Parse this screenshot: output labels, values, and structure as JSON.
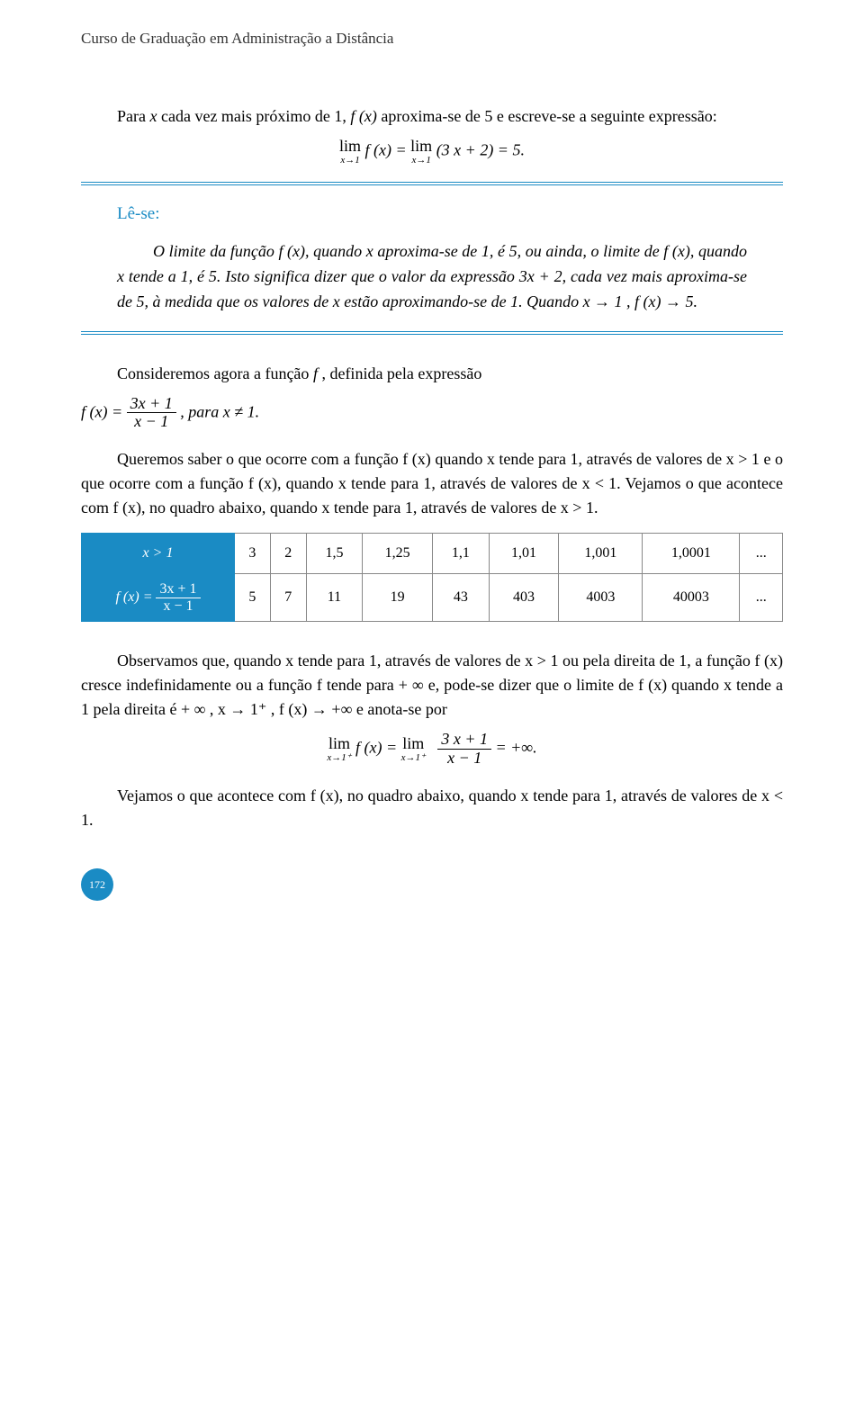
{
  "header": "Curso de Graduação em Administração a Distância",
  "p1_a": "Para ",
  "p1_b": " cada vez mais próximo de 1, ",
  "p1_c": " aproxima-se de 5 e escreve-se a seguinte expressão:",
  "eq1_lim1_top": "lim",
  "eq1_lim1_bot": "x→1",
  "eq1_mid": " f (x) = ",
  "eq1_lim2_top": "lim",
  "eq1_lim2_bot": "x→1",
  "eq1_end": "(3 x + 2) = 5.",
  "lese_title": "Lê-se:",
  "lese_body_a": "O limite da função f (x), quando x aproxima-se de 1, é 5, ou ainda, o limite de f (x), quando x tende a 1, é 5. Isto significa dizer que o valor da expressão ",
  "lese_expr": "3x + 2",
  "lese_body_b": ", cada vez mais aproxima-se de 5, à medida que os valores de x estão aproximando-se de 1. Quando x → 1 , f (x) → 5.",
  "p2_a": "Consideremos agora a função ",
  "p2_b": " , definida pela expressão",
  "eq2_lhs": "f (x) = ",
  "eq2_num": "3x + 1",
  "eq2_den": "x − 1",
  "eq2_tail": " , para x ≠ 1.",
  "p3": "Queremos saber o que ocorre com a função f (x) quando x tende para 1, através de valores de x > 1 e o que ocorre com a função f (x), quando x tende para 1, através de valores de x < 1. Vejamos o que acontece com f (x), no quadro abaixo, quando x tende para 1, através de valores de x > 1.",
  "table": {
    "row1_header": "x > 1",
    "row1": [
      "3",
      "2",
      "1,5",
      "1,25",
      "1,1",
      "1,01",
      "1,001",
      "1,0001",
      "..."
    ],
    "row2_header_lhs": "f (x) = ",
    "row2_header_num": "3x + 1",
    "row2_header_den": "x − 1",
    "row2": [
      "5",
      "7",
      "11",
      "19",
      "43",
      "403",
      "4003",
      "40003",
      "..."
    ]
  },
  "p4": "Observamos que, quando x tende para 1, através de valores de x > 1 ou pela direita de 1, a função f (x) cresce indefinidamente ou a função f tende para + ∞ e, pode-se dizer que o limite de f (x) quando x tende a 1 pela direita é + ∞ , x → 1⁺ , f (x) → +∞ e anota-se por",
  "eq3_lim1_top": "lim",
  "eq3_lim1_bot": "x→1⁺",
  "eq3_mid": " f (x) = ",
  "eq3_lim2_top": "lim",
  "eq3_lim2_bot": "x→1⁺",
  "eq3_num": "3 x + 1",
  "eq3_den": "x − 1",
  "eq3_end": " = +∞.",
  "p5": "Vejamos o que acontece com f (x), no quadro abaixo, quando x tende para 1, através de valores de x < 1.",
  "page_num": "172",
  "sym_x": "x",
  "sym_f": "f",
  "sym_fx": "f (x)"
}
